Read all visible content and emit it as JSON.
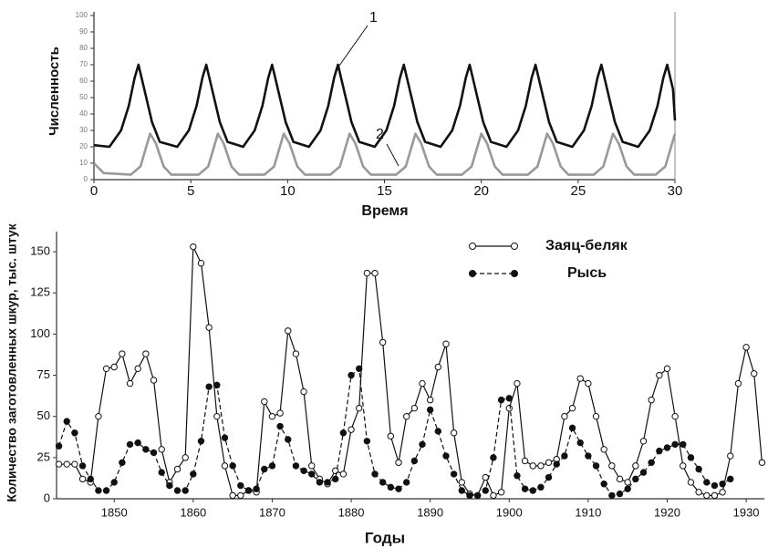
{
  "chart_data": [
    {
      "type": "line",
      "x_label": "Время",
      "y_label": "Численность",
      "annotations": [
        "1",
        "2"
      ],
      "xlim": [
        0,
        30
      ],
      "xticks": [
        0,
        5,
        10,
        15,
        20,
        25,
        30
      ],
      "ylim": [
        0,
        100
      ],
      "yticks": [
        0,
        10,
        20,
        30,
        40,
        50,
        60,
        70,
        80,
        90,
        100
      ],
      "series": [
        {
          "color": "#111111",
          "x": [
            0,
            0.8,
            1.4,
            1.8,
            2.1,
            2.3,
            2.6,
            3.0,
            3.4,
            4.3,
            4.9,
            5.3,
            5.6,
            5.8,
            6.1,
            6.5,
            6.9,
            7.7,
            8.3,
            8.7,
            9.0,
            9.2,
            9.5,
            9.9,
            10.3,
            11.1,
            11.7,
            12.1,
            12.4,
            12.6,
            12.9,
            13.3,
            13.7,
            14.5,
            15.1,
            15.5,
            15.8,
            16.0,
            16.3,
            16.7,
            17.1,
            17.9,
            18.5,
            18.9,
            19.2,
            19.4,
            19.7,
            20.1,
            20.5,
            21.3,
            21.9,
            22.3,
            22.6,
            22.8,
            23.1,
            23.5,
            23.9,
            24.7,
            25.3,
            25.7,
            26.0,
            26.2,
            26.5,
            26.9,
            27.3,
            28.1,
            28.7,
            29.1,
            29.4,
            29.6,
            29.9,
            30
          ],
          "values": [
            21,
            20,
            30,
            45,
            62,
            70,
            55,
            35,
            23,
            20,
            30,
            45,
            62,
            70,
            55,
            35,
            23,
            20,
            30,
            45,
            62,
            70,
            55,
            35,
            23,
            20,
            30,
            45,
            62,
            70,
            55,
            35,
            23,
            20,
            30,
            45,
            62,
            70,
            55,
            35,
            23,
            20,
            30,
            45,
            62,
            70,
            55,
            35,
            23,
            20,
            30,
            45,
            62,
            70,
            55,
            35,
            23,
            20,
            30,
            45,
            62,
            70,
            55,
            35,
            23,
            20,
            30,
            45,
            62,
            70,
            55,
            36
          ]
        },
        {
          "color": "#999999",
          "x": [
            0,
            0.5,
            1.9,
            2.4,
            2.7,
            2.9,
            3.2,
            3.6,
            4.0,
            5.4,
            5.9,
            6.2,
            6.4,
            6.7,
            7.1,
            7.5,
            8.8,
            9.3,
            9.6,
            9.8,
            10.1,
            10.5,
            10.9,
            12.2,
            12.7,
            13.0,
            13.2,
            13.5,
            13.9,
            14.3,
            15.6,
            16.1,
            16.4,
            16.6,
            16.9,
            17.3,
            17.7,
            19.0,
            19.5,
            19.8,
            20.0,
            20.3,
            20.7,
            21.1,
            22.4,
            22.9,
            23.2,
            23.4,
            23.7,
            24.1,
            24.5,
            25.8,
            26.3,
            26.6,
            26.8,
            27.1,
            27.5,
            27.9,
            29.0,
            29.5,
            29.8,
            30
          ],
          "values": [
            10,
            4,
            3,
            8,
            20,
            28,
            22,
            8,
            3,
            3,
            8,
            20,
            28,
            22,
            8,
            3,
            3,
            8,
            20,
            28,
            22,
            8,
            3,
            3,
            8,
            20,
            28,
            22,
            8,
            3,
            3,
            8,
            20,
            28,
            22,
            8,
            3,
            3,
            8,
            20,
            28,
            22,
            8,
            3,
            3,
            8,
            20,
            28,
            22,
            8,
            3,
            3,
            8,
            20,
            28,
            22,
            8,
            3,
            3,
            8,
            20,
            28
          ]
        }
      ]
    },
    {
      "type": "line",
      "x_label": "Годы",
      "y_label": "Количество заготовленных шкур, тыс. штук",
      "legend": "top-right",
      "xlim": [
        1842.7,
        1932.3
      ],
      "xticks": [
        1850,
        1860,
        1870,
        1880,
        1890,
        1900,
        1910,
        1920,
        1930
      ],
      "ylim": [
        0,
        160
      ],
      "yticks": [
        0,
        25,
        50,
        75,
        100,
        125,
        150
      ],
      "series": [
        {
          "name": "Заяц-беляк",
          "color": "#111111",
          "marker": "open",
          "dashed": false,
          "x": [
            1843,
            1844,
            1845,
            1846,
            1847,
            1848,
            1849,
            1850,
            1851,
            1852,
            1853,
            1854,
            1855,
            1856,
            1857,
            1858,
            1859,
            1860,
            1861,
            1862,
            1863,
            1864,
            1865,
            1866,
            1867,
            1868,
            1869,
            1870,
            1871,
            1872,
            1873,
            1874,
            1875,
            1876,
            1877,
            1878,
            1879,
            1880,
            1881,
            1882,
            1883,
            1884,
            1885,
            1886,
            1887,
            1888,
            1889,
            1890,
            1891,
            1892,
            1893,
            1894,
            1895,
            1896,
            1897,
            1898,
            1899,
            1900,
            1901,
            1902,
            1903,
            1904,
            1905,
            1906,
            1907,
            1908,
            1909,
            1910,
            1911,
            1912,
            1913,
            1914,
            1915,
            1916,
            1917,
            1918,
            1919,
            1920,
            1921,
            1922,
            1923,
            1924,
            1925,
            1926,
            1927,
            1928,
            1929,
            1930,
            1931,
            1932
          ],
          "values": [
            21,
            21,
            21,
            12,
            10,
            50,
            79,
            80,
            88,
            70,
            79,
            88,
            72,
            30,
            10,
            18,
            25,
            153,
            143,
            104,
            50,
            20,
            2,
            2,
            5,
            4,
            59,
            50,
            52,
            102,
            88,
            65,
            20,
            12,
            9,
            17,
            15,
            42,
            55,
            137,
            137,
            95,
            38,
            22,
            50,
            55,
            70,
            60,
            80,
            94,
            40,
            10,
            3,
            2,
            13,
            2,
            4,
            55,
            70,
            23,
            20,
            20,
            22,
            24,
            50,
            55,
            73,
            70,
            50,
            30,
            20,
            12,
            10,
            20,
            35,
            60,
            75,
            79,
            50,
            20,
            10,
            4,
            2,
            2,
            4,
            26,
            70,
            92,
            76,
            22
          ]
        },
        {
          "name": "Рысь",
          "color": "#111111",
          "marker": "filled",
          "dashed": true,
          "x": [
            1843,
            1844,
            1845,
            1846,
            1847,
            1848,
            1849,
            1850,
            1851,
            1852,
            1853,
            1854,
            1855,
            1856,
            1857,
            1858,
            1859,
            1860,
            1861,
            1862,
            1863,
            1864,
            1865,
            1866,
            1867,
            1868,
            1869,
            1870,
            1871,
            1872,
            1873,
            1874,
            1875,
            1876,
            1877,
            1878,
            1879,
            1880,
            1881,
            1882,
            1883,
            1884,
            1885,
            1886,
            1887,
            1888,
            1889,
            1890,
            1891,
            1892,
            1893,
            1894,
            1895,
            1896,
            1897,
            1898,
            1899,
            1900,
            1901,
            1902,
            1903,
            1904,
            1905,
            1906,
            1907,
            1908,
            1909,
            1910,
            1911,
            1912,
            1913,
            1914,
            1915,
            1916,
            1917,
            1918,
            1919,
            1920,
            1921,
            1922,
            1923,
            1924,
            1925,
            1926,
            1927,
            1928
          ],
          "values": [
            32,
            47,
            40,
            20,
            12,
            5,
            5,
            10,
            22,
            33,
            34,
            30,
            28,
            16,
            8,
            5,
            5,
            15,
            35,
            68,
            69,
            37,
            20,
            8,
            5,
            6,
            18,
            20,
            44,
            36,
            20,
            17,
            15,
            10,
            10,
            12,
            40,
            75,
            79,
            35,
            15,
            10,
            7,
            6,
            10,
            23,
            33,
            54,
            41,
            26,
            15,
            5,
            2,
            2,
            5,
            25,
            60,
            61,
            14,
            6,
            5,
            7,
            13,
            21,
            26,
            43,
            34,
            26,
            20,
            9,
            2,
            3,
            6,
            12,
            16,
            22,
            29,
            31,
            33,
            33,
            25,
            18,
            10,
            8,
            9,
            12
          ]
        }
      ]
    }
  ]
}
